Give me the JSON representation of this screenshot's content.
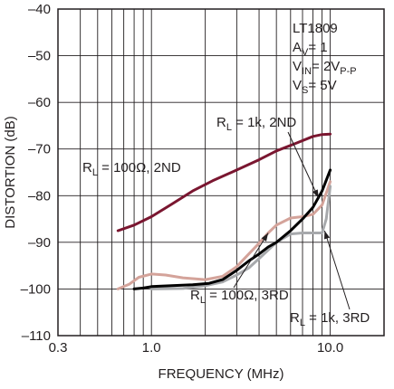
{
  "chart_data": {
    "type": "line",
    "xlabel": "FREQUENCY (MHz)",
    "ylabel": "DISTORTION (dB)",
    "xscale": "log",
    "xlim": [
      0.3,
      20
    ],
    "ylim": [
      -110,
      -40
    ],
    "x_ticks": [
      {
        "value": 0.3,
        "label": "0.3"
      },
      {
        "value": 1,
        "label": "1.0"
      },
      {
        "value": 10,
        "label": "10.0"
      }
    ],
    "y_ticks": [
      {
        "value": -40,
        "label": "–40"
      },
      {
        "value": -50,
        "label": "–50"
      },
      {
        "value": -60,
        "label": "–60"
      },
      {
        "value": -70,
        "label": "–70"
      },
      {
        "value": -80,
        "label": "–80"
      },
      {
        "value": -90,
        "label": "–90"
      },
      {
        "value": -100,
        "label": "–100"
      },
      {
        "value": -110,
        "label": "–110"
      }
    ],
    "grid": true,
    "info_box": [
      "LT1809",
      "A",
      "V",
      "= 1",
      "V",
      "IN",
      "= 2V",
      "P-P",
      "V",
      "S",
      "= 5V"
    ],
    "series": [
      {
        "name": "R_L = 100Ω, 2ND",
        "color": "#7a1630",
        "x": [
          0.65,
          0.8,
          1.0,
          1.3,
          1.7,
          2.2,
          3.0,
          4.0,
          5.0,
          6.5,
          8.0,
          9.0,
          10.0
        ],
        "y": [
          -87.5,
          -86.3,
          -84.5,
          -81.8,
          -79.0,
          -76.8,
          -74.5,
          -72.3,
          -70.4,
          -68.7,
          -67.3,
          -66.9,
          -66.8
        ]
      },
      {
        "name": "R_L = 1k, 2ND",
        "color": "#000000",
        "x": [
          0.8,
          0.9,
          1.0,
          1.3,
          1.7,
          2.1,
          2.5,
          3.0,
          3.5,
          4.0,
          4.5,
          5.0,
          6.0,
          7.0,
          8.0,
          9.0,
          10.0
        ],
        "y": [
          -100,
          -99.8,
          -99.5,
          -99.3,
          -99.1,
          -98.8,
          -98.0,
          -96.0,
          -94.0,
          -92.5,
          -91.0,
          -90.0,
          -87.5,
          -85.0,
          -82.5,
          -79.0,
          -74.5
        ]
      },
      {
        "name": "R_L = 100Ω, 3RD",
        "color": "#d4a39a",
        "x": [
          0.65,
          0.75,
          0.85,
          1.0,
          1.2,
          1.5,
          2.0,
          2.5,
          3.0,
          3.5,
          4.0,
          4.5,
          5.0,
          6.0,
          7.0,
          8.0,
          9.0,
          10.0
        ],
        "y": [
          -100,
          -99.0,
          -97.5,
          -96.8,
          -97.0,
          -97.6,
          -98.0,
          -97.3,
          -95.2,
          -92.5,
          -90.2,
          -88.0,
          -86.3,
          -84.8,
          -84.5,
          -84.0,
          -82.0,
          -77.0
        ]
      },
      {
        "name": "R_L = 1k, 3RD",
        "color": "#a7a9ac",
        "x": [
          1.0,
          1.5,
          2.0,
          2.5,
          3.0,
          3.5,
          4.0,
          5.0,
          6.0,
          7.0,
          8.0,
          9.0,
          9.5,
          10.0
        ],
        "y": [
          -100,
          -99.9,
          -99.3,
          -98.5,
          -97.0,
          -95.5,
          -93.5,
          -90.0,
          -88.2,
          -88.0,
          -88.0,
          -88.0,
          -85.0,
          -78.0
        ]
      }
    ],
    "annotations": [
      {
        "pre": "R",
        "sub": "L",
        "post": " = 100Ω, 2ND"
      },
      {
        "pre": "R",
        "sub": "L",
        "post": " = 1k, 2ND"
      },
      {
        "pre": "R",
        "sub": "L",
        "post": " = 100Ω, 3RD"
      },
      {
        "pre": "R",
        "sub": "L",
        "post": " = 1k, 3RD"
      }
    ]
  }
}
